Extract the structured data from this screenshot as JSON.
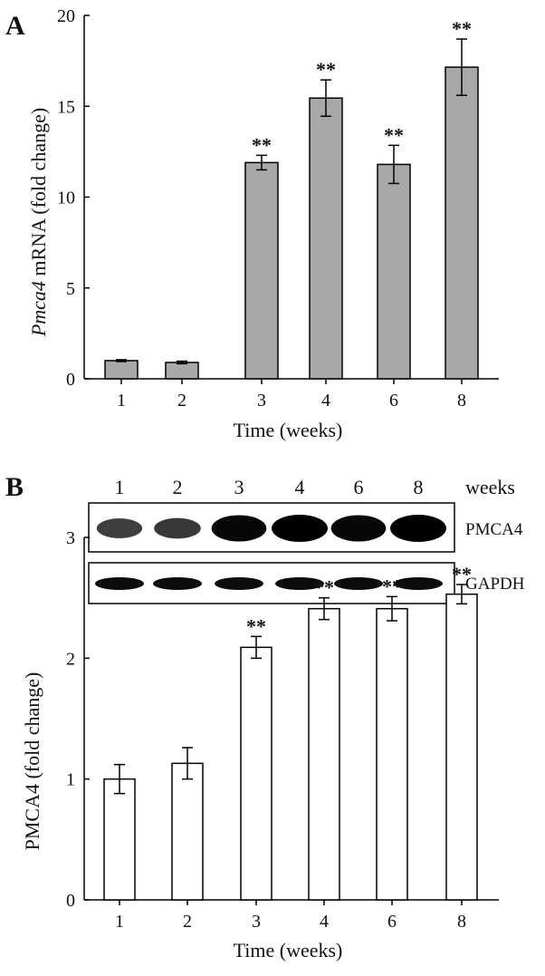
{
  "panel_labels": {
    "a": "A",
    "b": "B"
  },
  "blot": {
    "header": "weeks",
    "lanes": [
      "1",
      "2",
      "3",
      "4",
      "6",
      "8"
    ],
    "strips": [
      "PMCA4",
      "GAPDH"
    ],
    "pmca4_band_intensity": [
      0.55,
      0.6,
      0.95,
      1.0,
      0.95,
      1.0
    ],
    "gapdh_band_intensity": [
      0.9,
      0.9,
      0.9,
      0.9,
      0.9,
      0.9
    ]
  },
  "chart_data": [
    {
      "type": "bar",
      "panel": "A",
      "categories": [
        "1",
        "2",
        "3",
        "4",
        "6",
        "8"
      ],
      "values": [
        1.0,
        0.9,
        11.9,
        15.45,
        11.8,
        17.15
      ],
      "errors": [
        0.05,
        0.07,
        0.4,
        1.0,
        1.05,
        1.55
      ],
      "significance": [
        "",
        "",
        "**",
        "**",
        "**",
        "**"
      ],
      "ylabel_italic": "Pmca4",
      "ylabel_rest": " mRNA (fold change)",
      "xlabel": "Time (weeks)",
      "ylim": [
        0,
        20
      ],
      "yticks": [
        "0",
        "5",
        "10",
        "15",
        "20"
      ],
      "bar_color": "#a8a8a8"
    },
    {
      "type": "bar",
      "panel": "B",
      "categories": [
        "1",
        "2",
        "3",
        "4",
        "6",
        "8"
      ],
      "values": [
        1.0,
        1.13,
        2.09,
        2.41,
        2.41,
        2.53
      ],
      "errors": [
        0.12,
        0.13,
        0.09,
        0.09,
        0.1,
        0.08
      ],
      "significance": [
        "",
        "",
        "**",
        "**",
        "**",
        "**"
      ],
      "ylabel": "PMCA4 (fold change)",
      "xlabel": "Time (weeks)",
      "ylim": [
        0,
        3
      ],
      "yticks": [
        "0",
        "1",
        "2",
        "3"
      ],
      "bar_color": "#ffffff"
    }
  ]
}
